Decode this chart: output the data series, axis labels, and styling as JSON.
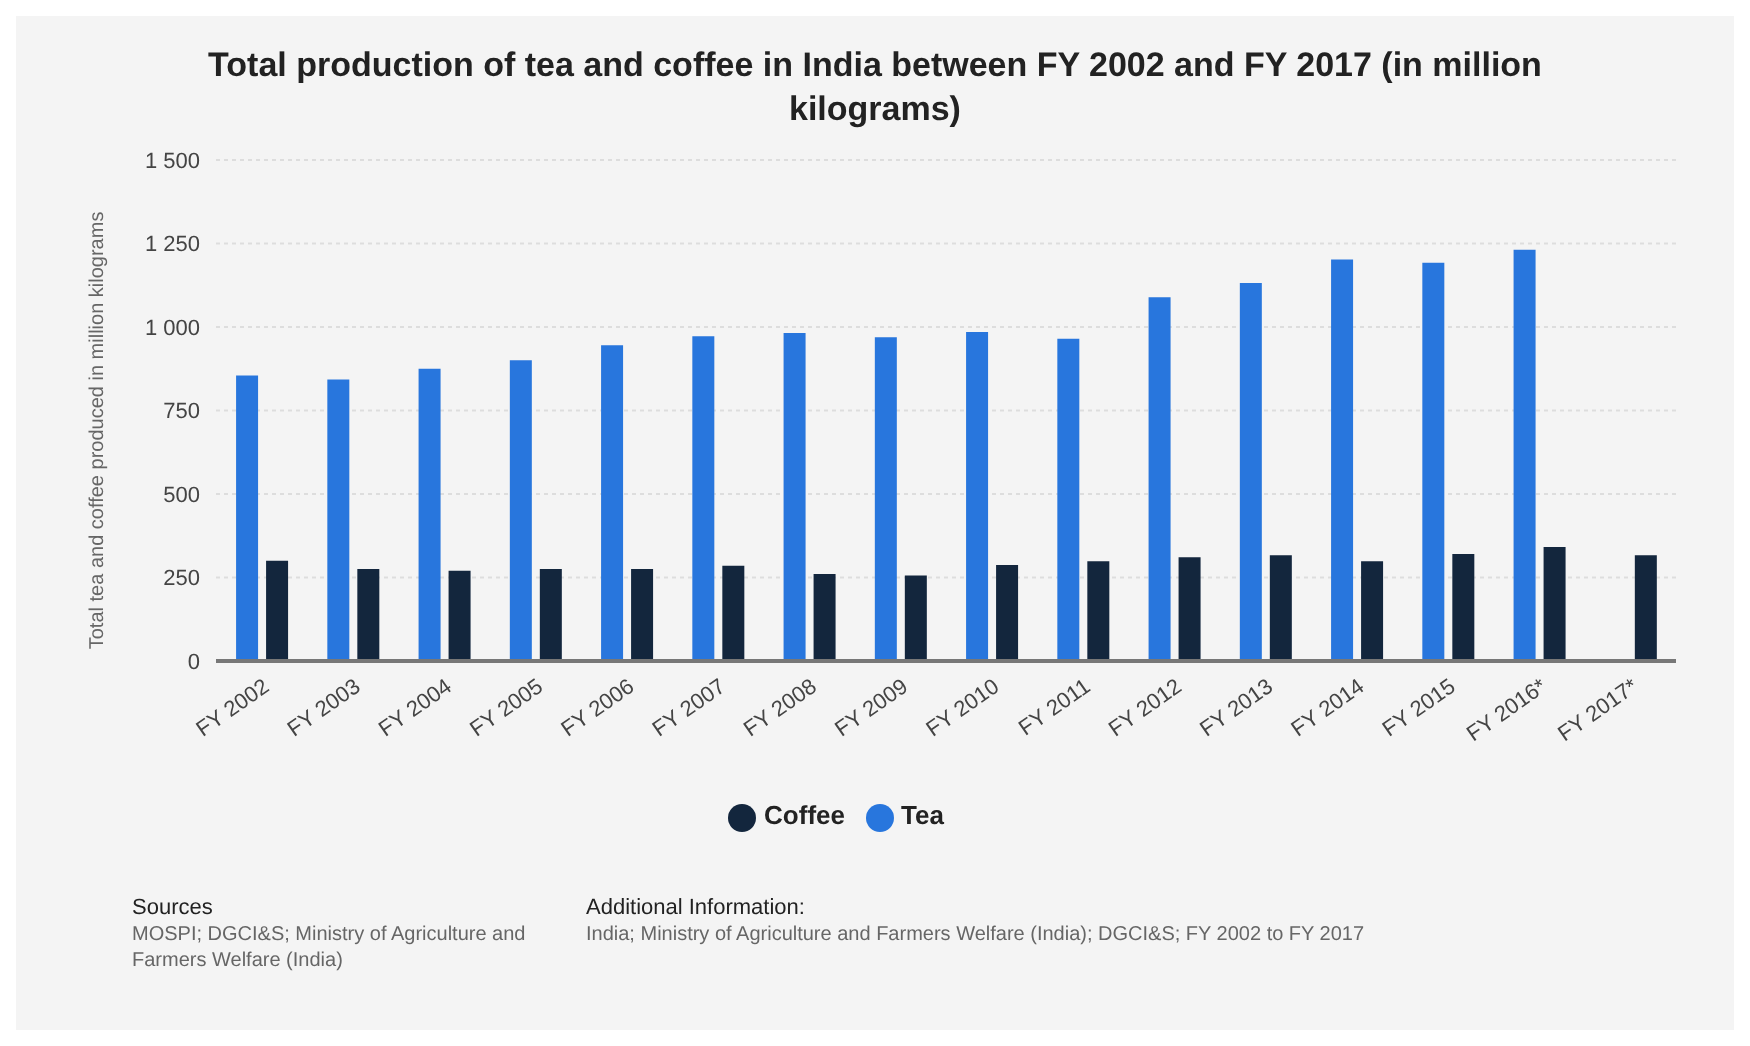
{
  "chart_data": {
    "type": "bar",
    "title": "Total production of tea and coffee in India between FY 2002 and FY 2017 (in million kilograms)",
    "ylabel": "Total tea and coffee produced in million kilograms",
    "categories": [
      "FY 2002",
      "FY 2003",
      "FY 2004",
      "FY 2005",
      "FY 2006",
      "FY 2007",
      "FY 2008",
      "FY 2009",
      "FY 2010",
      "FY 2011",
      "FY 2012",
      "FY 2013",
      "FY 2014",
      "FY 2015",
      "FY 2016*",
      "FY 2017*"
    ],
    "series": [
      {
        "name": "Tea",
        "color": "#2876dd",
        "values": [
          855,
          843,
          875,
          900,
          945,
          972,
          982,
          969,
          985,
          965,
          1089,
          1132,
          1202,
          1192,
          1231,
          null
        ]
      },
      {
        "name": "Coffee",
        "color": "#13263d",
        "values": [
          300,
          275,
          270,
          275,
          275,
          285,
          260,
          256,
          287,
          298,
          310,
          316,
          298,
          320,
          341,
          316
        ]
      }
    ],
    "ylim": [
      0,
      1500
    ],
    "yticks": [
      0,
      {
        "value": 250,
        "label": "250"
      },
      {
        "value": 500,
        "label": "500"
      },
      {
        "value": 750,
        "label": "750"
      },
      {
        "value": 1000,
        "label": "1 000"
      },
      {
        "value": 1250,
        "label": "1 250"
      },
      {
        "value": 1500,
        "label": "1 500"
      }
    ],
    "grid": "y",
    "legend": "bottom",
    "annotations": [
      "Sources",
      "MOSPI; DGCI&S; Ministry of Agriculture and Farmers Welfare (India)",
      "Additional Information:",
      "India; Ministry of Agriculture and Farmers Welfare (India); DGCI&S; FY 2002 to FY 2017"
    ]
  }
}
